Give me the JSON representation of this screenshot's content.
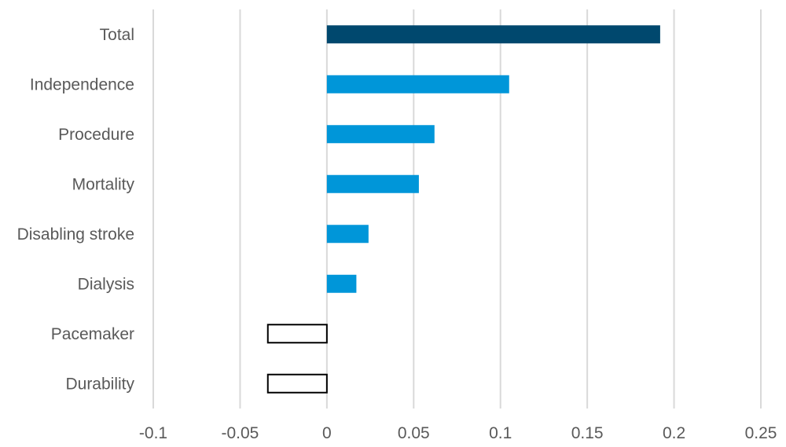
{
  "chart_data": {
    "type": "bar",
    "orientation": "horizontal",
    "categories": [
      "Total",
      "Independence",
      "Procedure",
      "Mortality",
      "Disabling stroke",
      "Dialysis",
      "Pacemaker",
      "Durability"
    ],
    "values": [
      0.192,
      0.105,
      0.062,
      0.053,
      0.024,
      0.017,
      -0.034,
      -0.034
    ],
    "bar_styles": [
      "total",
      "positive",
      "positive",
      "positive",
      "positive",
      "positive",
      "negative",
      "negative"
    ],
    "xlim": [
      -0.1,
      0.25
    ],
    "xticks": [
      -0.1,
      -0.05,
      0,
      0.05,
      0.1,
      0.15,
      0.2,
      0.25
    ],
    "xtick_labels": [
      "-0.1",
      "-0.05",
      "0",
      "0.05",
      "0.1",
      "0.15",
      "0.2",
      "0.25"
    ],
    "grid": "vertical",
    "title": "",
    "xlabel": "",
    "ylabel": "",
    "colors": {
      "total": "#00486E",
      "positive": "#0096D9",
      "negative_fill": "#FFFFFF",
      "negative_stroke": "#000000"
    }
  }
}
